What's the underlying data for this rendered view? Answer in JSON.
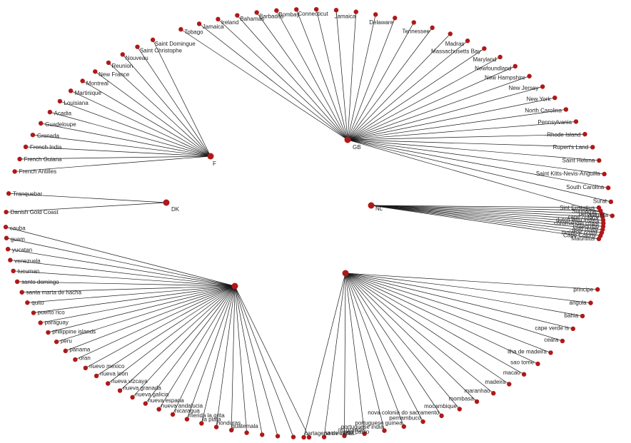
{
  "graph": {
    "hubs": [
      {
        "id": "F",
        "label": "F"
      },
      {
        "id": "GB",
        "label": "GB"
      },
      {
        "id": "DK",
        "label": "DK"
      },
      {
        "id": "NL",
        "label": "NL"
      },
      {
        "id": "E",
        "label": ""
      },
      {
        "id": "P",
        "label": ""
      }
    ],
    "groups": [
      {
        "hub": "F",
        "labels": [
          "Saint Domingue",
          "Saint Christophe",
          "Nouveau",
          "Reunion",
          "New France",
          "Montreal",
          "Martinique",
          "Louisiana",
          "Acadia",
          "Guadeloupe",
          "Grenada",
          "French India",
          "French Guiana",
          "French Antilles"
        ]
      },
      {
        "hub": "DK",
        "labels": [
          "Tranquebar",
          "Danish Gold Coast"
        ]
      },
      {
        "hub": "GB",
        "labels": [
          "Tobago",
          "Jamaica",
          "Ireland",
          "Bahamas",
          "Barbados",
          "Bombay",
          "Connecticut",
          "",
          "",
          "Jamaica",
          "",
          "Delaware",
          "",
          "Tennessee",
          "",
          "Madras",
          "Massachusetts Bay",
          "Maryland",
          "Newfoundland",
          "New Hampshire",
          "New Jersey",
          "New York",
          "North Carolina",
          "Pennsylvania",
          "Rhode Island",
          "Rupert's Land",
          "Saint Helena",
          "Saint Kitts-Nevis-Anguilla",
          "South Carolina",
          "Surat",
          "Virginia"
        ]
      },
      {
        "hub": "NL",
        "labels": [
          "Sint Eustatius",
          "Suriname",
          "berbice",
          "cape colony",
          "dutch east indies",
          "coromandel coast",
          "essequibo",
          "gold coast",
          "malabar coast",
          "Cape Colony",
          "Mauritius"
        ]
      },
      {
        "hub": "E",
        "labels": [
          "cauba",
          "guam",
          "yucatan",
          "venezuela",
          "tucuman",
          "santo domingo",
          "santa marta de hacha",
          "quito",
          "puerto rico",
          "paraguay",
          "philippine islands",
          "peru",
          "panama",
          "oran",
          "nuevo mexico",
          "nueva leon",
          "nueva vizcaya",
          "nueva granada",
          "nueva galicia",
          "nueva espana",
          "nueva andalucia",
          "nicaragua",
          "merida la grita",
          "la plata",
          "honduras",
          "guatemala",
          "",
          "",
          "",
          "",
          ""
        ]
      },
      {
        "hub": "P",
        "labels": [
          "principe",
          "angola",
          "bahia",
          "cape verde is",
          "ceara",
          "ilha de madeira",
          "sao tome",
          "macao",
          "madeira",
          "maranhao",
          "mombasa",
          "mocambique",
          "nova colonia do sacramento",
          "pernambuco",
          "portuguese guinea",
          "portuguese india",
          "rio grande",
          "sao paulo",
          "sao vicente",
          "cartagena de indias"
        ]
      }
    ]
  }
}
